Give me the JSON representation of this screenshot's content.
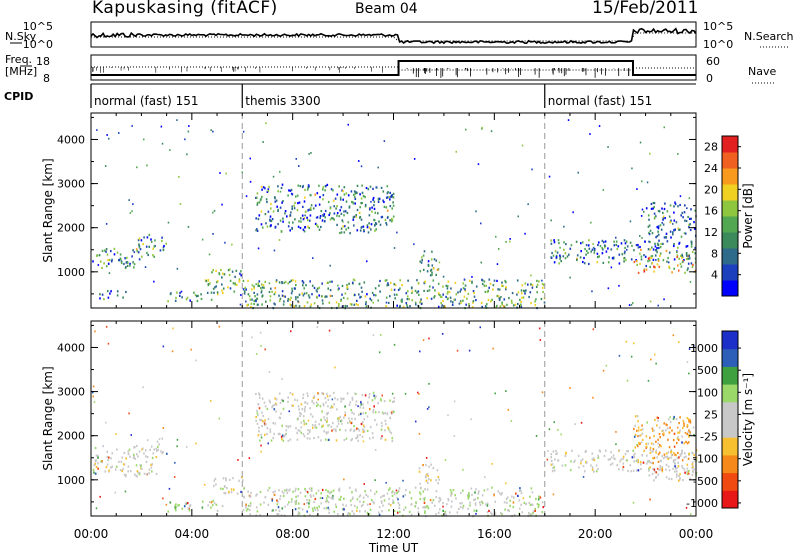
{
  "header": {
    "station": "Kapuskasing (fitACF)",
    "beam": "Beam 04",
    "date": "15/Feb/2011"
  },
  "sky_panel": {
    "left_label": "N.Sky",
    "right_label": "N.Search",
    "left_ticks": [
      "10^5",
      "10^0"
    ],
    "right_ticks": [
      "10^5",
      "10^0"
    ]
  },
  "freq_panel": {
    "left_label_1": "Freq.",
    "left_label_2": "[MHz]",
    "right_label": "Nave",
    "left_ticks": [
      "18",
      "8"
    ],
    "right_ticks": [
      "60",
      "0"
    ]
  },
  "cpid": {
    "label": "CPID",
    "modes": [
      {
        "text": "normal (fast) 151",
        "start_hour": 0
      },
      {
        "text": "themis 3300",
        "start_hour": 6
      },
      {
        "text": "normal (fast) 151",
        "start_hour": 18
      }
    ]
  },
  "chart_data": [
    {
      "type": "heatmap",
      "title": "Power",
      "ylabel": "Slant Range [km]",
      "xlabel": "",
      "xlim": [
        0,
        24
      ],
      "ylim": [
        180,
        4600
      ],
      "yticks": [
        "1000",
        "2000",
        "3000",
        "4000"
      ],
      "colorbar": {
        "label": "Power [dB]",
        "ticks": [
          "28",
          "24",
          "20",
          "16",
          "12",
          "8",
          "4"
        ],
        "range": [
          0,
          30
        ],
        "colors": [
          "#0000ff",
          "#1c3fbd",
          "#2e6b8a",
          "#3a8a5c",
          "#52a852",
          "#8ec63f",
          "#f0d020",
          "#f79a1e",
          "#f06020",
          "#e32020"
        ]
      },
      "echo_regions": [
        {
          "t_start": 0.0,
          "t_end": 1.8,
          "range_start": 1100,
          "range_end": 1550,
          "mean_value": 10
        },
        {
          "t_start": 1.8,
          "t_end": 2.6,
          "range_start": 1300,
          "range_end": 1900,
          "mean_value": 12
        },
        {
          "t_start": 2.7,
          "t_end": 3.0,
          "range_start": 1500,
          "range_end": 1900,
          "mean_value": 8
        },
        {
          "t_start": 0.3,
          "t_end": 1.4,
          "range_start": 400,
          "range_end": 600,
          "mean_value": 6
        },
        {
          "t_start": 3.0,
          "t_end": 4.8,
          "range_start": 350,
          "range_end": 560,
          "mean_value": 10
        },
        {
          "t_start": 4.5,
          "t_end": 6.0,
          "range_start": 500,
          "range_end": 1100,
          "mean_value": 14
        },
        {
          "t_start": 6.5,
          "t_end": 12.0,
          "range_start": 1900,
          "range_end": 3000,
          "mean_value": 8
        },
        {
          "t_start": 6.0,
          "t_end": 18.0,
          "range_start": 200,
          "range_end": 850,
          "mean_value": 12
        },
        {
          "t_start": 13.0,
          "t_end": 13.8,
          "range_start": 900,
          "range_end": 1500,
          "mean_value": 14
        },
        {
          "t_start": 18.2,
          "t_end": 24.0,
          "range_start": 1200,
          "range_end": 1750,
          "mean_value": 8
        },
        {
          "t_start": 21.5,
          "t_end": 24.0,
          "range_start": 1000,
          "range_end": 1400,
          "mean_value": 20
        },
        {
          "t_start": 22.0,
          "t_end": 24.0,
          "range_start": 1800,
          "range_end": 2600,
          "mean_value": 6
        }
      ]
    },
    {
      "type": "heatmap",
      "title": "Velocity",
      "ylabel": "Slant Range [km]",
      "xlabel": "Time UT",
      "xlim": [
        0,
        24
      ],
      "ylim": [
        180,
        4600
      ],
      "xticks": [
        "00:00",
        "04:00",
        "08:00",
        "12:00",
        "16:00",
        "20:00",
        "00:00"
      ],
      "yticks": [
        "1000",
        "2000",
        "3000",
        "4000"
      ],
      "colorbar": {
        "label": "Velocity [m s⁻¹]",
        "ticks": [
          "1000",
          "500",
          "100",
          "25",
          "-25",
          "-100",
          "-500",
          "-1000"
        ],
        "range": [
          -1000,
          1000
        ],
        "colors": [
          "#e81818",
          "#f04a10",
          "#f58a1a",
          "#f7c030",
          "#c8c8c8",
          "#c8c8c8",
          "#9ad86a",
          "#3fa040",
          "#2d5fb8",
          "#1c2fc8"
        ]
      },
      "echo_regions": [
        {
          "t_start": 0.0,
          "t_end": 2.6,
          "range_start": 1100,
          "range_end": 1800,
          "mean_value": 0
        },
        {
          "t_start": 2.5,
          "t_end": 3.0,
          "range_start": 1600,
          "range_end": 2000,
          "mean_value": 0
        },
        {
          "t_start": 3.0,
          "t_end": 5.2,
          "range_start": 300,
          "range_end": 560,
          "mean_value": 250
        },
        {
          "t_start": 4.8,
          "t_end": 6.0,
          "range_start": 700,
          "range_end": 1100,
          "mean_value": 0
        },
        {
          "t_start": 6.5,
          "t_end": 12.0,
          "range_start": 1900,
          "range_end": 3000,
          "mean_value": 0
        },
        {
          "t_start": 6.0,
          "t_end": 18.0,
          "range_start": 200,
          "range_end": 850,
          "mean_value": 150
        },
        {
          "t_start": 13.0,
          "t_end": 13.8,
          "range_start": 900,
          "range_end": 1400,
          "mean_value": -200
        },
        {
          "t_start": 18.2,
          "t_end": 24.0,
          "range_start": 1200,
          "range_end": 1700,
          "mean_value": 0
        },
        {
          "t_start": 21.5,
          "t_end": 24.0,
          "range_start": 1400,
          "range_end": 2500,
          "mean_value": -300
        },
        {
          "t_start": 22.0,
          "t_end": 24.0,
          "range_start": 1000,
          "range_end": 1400,
          "mean_value": 0
        }
      ]
    }
  ]
}
